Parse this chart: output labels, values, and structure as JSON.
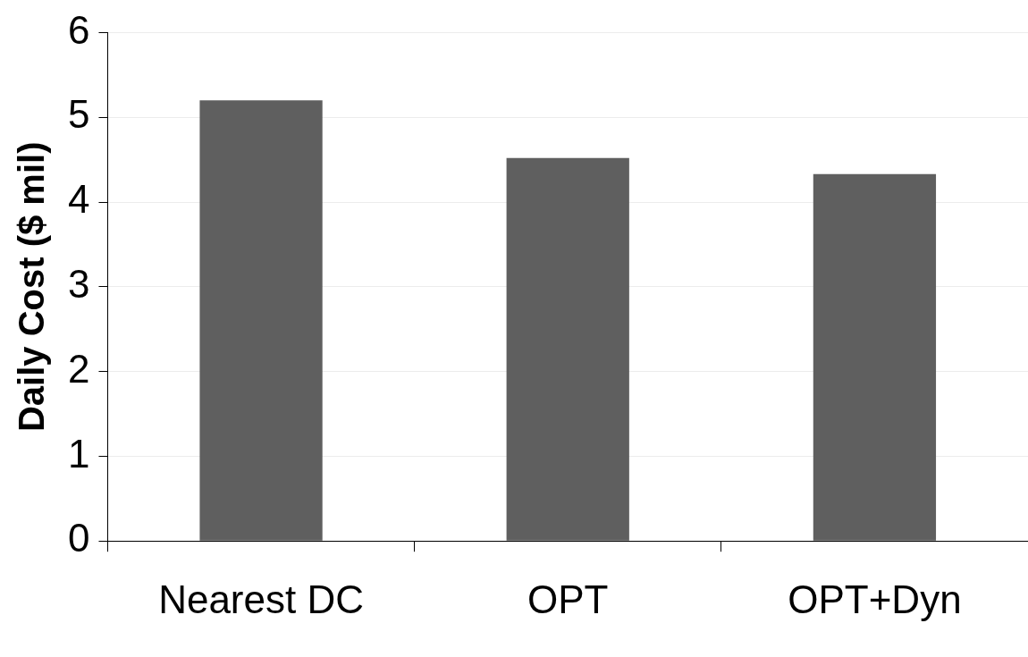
{
  "chart_data": {
    "type": "bar",
    "ylabel": "Daily Cost ($ mil)",
    "categories": [
      "Nearest DC",
      "OPT",
      "OPT+Dyn"
    ],
    "values": [
      5.2,
      4.52,
      4.33
    ],
    "color": "#5f5f5f",
    "ylim": [
      0,
      6
    ],
    "yticks": [
      0,
      1,
      2,
      3,
      4,
      5,
      6
    ],
    "grid": "y",
    "legend": false
  }
}
